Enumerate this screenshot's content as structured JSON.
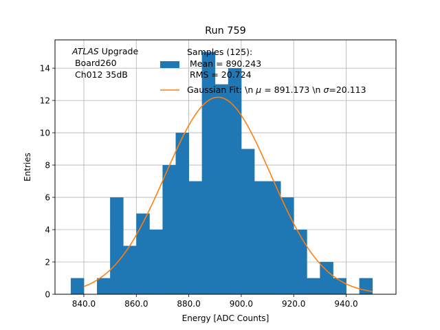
{
  "chart_data": {
    "type": "bar",
    "title": "Run 759",
    "xlabel": "Energy [ADC Counts]",
    "ylabel": "Entries",
    "xlim": [
      829,
      959
    ],
    "ylim": [
      0,
      15.75
    ],
    "xticks": [
      840,
      860,
      880,
      900,
      920,
      940
    ],
    "xtick_labels": [
      "840.0",
      "860.0",
      "880.0",
      "900.0",
      "920.0",
      "940.0"
    ],
    "yticks": [
      0,
      2,
      4,
      6,
      8,
      10,
      12,
      14
    ],
    "ytick_labels": [
      "0",
      "2",
      "4",
      "6",
      "8",
      "10",
      "12",
      "14"
    ],
    "grid": true,
    "bin_width": 5,
    "bin_lefts": [
      835,
      840,
      845,
      850,
      855,
      860,
      865,
      870,
      875,
      880,
      885,
      890,
      895,
      900,
      905,
      910,
      915,
      920,
      925,
      930,
      935,
      940,
      945
    ],
    "counts": [
      1,
      0,
      1,
      6,
      3,
      5,
      4,
      8,
      10,
      7,
      15,
      13,
      14,
      9,
      7,
      7,
      6,
      4,
      1,
      2,
      1,
      0,
      1
    ],
    "bar_color": "#1f77b4",
    "fit": {
      "mu": 891.173,
      "sigma": 20.113,
      "amplitude": 12.2,
      "x_range": [
        840,
        950
      ],
      "color": "#ff7f0e"
    },
    "annotation": {
      "atlas": "ATLAS",
      "upgrade": " Upgrade",
      "line2": " Board260",
      "line3": " Ch012 35dB"
    },
    "legend": {
      "placement": "top-right",
      "hist_line1": "Samples (125):",
      "hist_line2": " Mean = 890.243",
      "hist_line3": " RMS = 20.724",
      "fit_label_prefix": "Gaussian Fit: \\n ",
      "fit_label_mu": "μ",
      "fit_label_mid": " = 891.173 \\n ",
      "fit_label_sigma": "σ",
      "fit_label_suffix": "=20.113"
    }
  }
}
